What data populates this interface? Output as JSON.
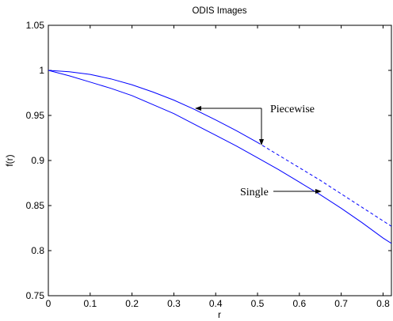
{
  "chart_data": {
    "type": "line",
    "title": "ODIS Images",
    "xlabel": "r",
    "ylabel": "f(r)",
    "xlim": [
      0,
      0.82
    ],
    "ylim": [
      0.75,
      1.05
    ],
    "xticks": [
      0,
      0.1,
      0.2,
      0.3,
      0.4,
      0.5,
      0.6,
      0.7,
      0.8
    ],
    "xtick_labels": [
      "0",
      "0.1",
      "0.2",
      "0.3",
      "0.4",
      "0.5",
      "0.6",
      "0.7",
      "0.8"
    ],
    "yticks": [
      0.75,
      0.8,
      0.85,
      0.9,
      0.95,
      1.0,
      1.05
    ],
    "ytick_labels": [
      "0.75",
      "0.8",
      "0.85",
      "0.9",
      "0.95",
      "1",
      "1.05"
    ],
    "grid": false,
    "legend": null,
    "line_color": "#0000ff",
    "series": [
      {
        "name": "Piecewise",
        "style": "solid-then-dashed",
        "dash_from_x": 0.5,
        "x": [
          0,
          0.05,
          0.1,
          0.15,
          0.2,
          0.25,
          0.3,
          0.35,
          0.4,
          0.45,
          0.5,
          0.55,
          0.6,
          0.65,
          0.7,
          0.75,
          0.8,
          0.82
        ],
        "y": [
          1.0,
          0.9985,
          0.9955,
          0.9905,
          0.984,
          0.976,
          0.967,
          0.9565,
          0.945,
          0.933,
          0.92,
          0.906,
          0.892,
          0.878,
          0.863,
          0.848,
          0.833,
          0.827
        ]
      },
      {
        "name": "Single",
        "style": "solid",
        "x": [
          0,
          0.05,
          0.1,
          0.15,
          0.2,
          0.25,
          0.3,
          0.35,
          0.4,
          0.45,
          0.5,
          0.55,
          0.6,
          0.65,
          0.7,
          0.75,
          0.8,
          0.82
        ],
        "y": [
          1.0,
          0.994,
          0.987,
          0.98,
          0.972,
          0.962,
          0.952,
          0.94,
          0.928,
          0.916,
          0.903,
          0.89,
          0.876,
          0.862,
          0.847,
          0.831,
          0.814,
          0.808
        ]
      }
    ],
    "annotations": [
      {
        "text": "Piecewise",
        "arrows_to": [
          {
            "x": 0.35,
            "y": 0.957
          },
          {
            "x": 0.505,
            "y": 0.918
          }
        ]
      },
      {
        "text": "Single",
        "arrows_to": [
          {
            "x": 0.65,
            "y": 0.864
          }
        ]
      }
    ]
  }
}
